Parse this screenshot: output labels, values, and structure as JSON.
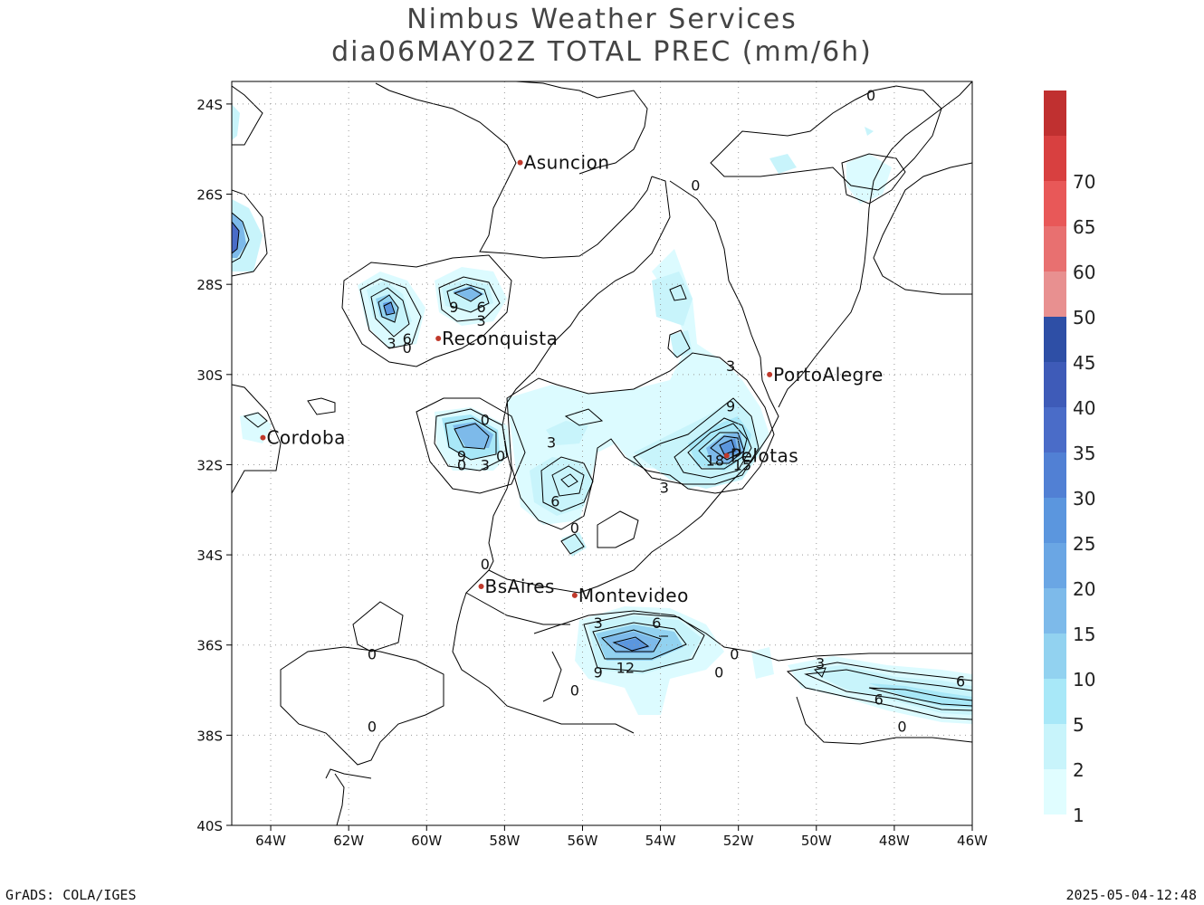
{
  "header": {
    "title": "Nimbus Weather Services",
    "subtitle": "dia06MAY02Z TOTAL PREC (mm/6h)"
  },
  "map": {
    "lon_range": [
      -65,
      -46
    ],
    "lat_range": [
      -40,
      -23.5
    ],
    "lat_ticks": [
      "24S",
      "26S",
      "28S",
      "30S",
      "32S",
      "34S",
      "36S",
      "38S",
      "40S"
    ],
    "lon_ticks": [
      "64W",
      "62W",
      "60W",
      "58W",
      "56W",
      "54W",
      "52W",
      "50W",
      "48W",
      "46W"
    ],
    "cities": [
      {
        "name": "Asuncion",
        "lon": -57.6,
        "lat": -25.3
      },
      {
        "name": "Reconquista",
        "lon": -59.7,
        "lat": -29.2
      },
      {
        "name": "PortoAlegre",
        "lon": -51.2,
        "lat": -30.0
      },
      {
        "name": "Cordoba",
        "lon": -64.2,
        "lat": -31.4
      },
      {
        "name": "Pelotas",
        "lon": -52.3,
        "lat": -31.8
      },
      {
        "name": "BsAires",
        "lon": -58.6,
        "lat": -34.7
      },
      {
        "name": "Montevideo",
        "lon": -56.2,
        "lat": -34.9
      }
    ],
    "city_color": "#c0392b",
    "contour_labels": [
      {
        "t": "0",
        "lon": -48.6,
        "lat": -23.8
      },
      {
        "t": "0",
        "lon": -53.1,
        "lat": -25.8
      },
      {
        "t": "9",
        "lon": -59.3,
        "lat": -28.5
      },
      {
        "t": "6",
        "lon": -58.6,
        "lat": -28.5
      },
      {
        "t": "3",
        "lon": -58.6,
        "lat": -28.8
      },
      {
        "t": "3",
        "lon": -60.9,
        "lat": -29.3
      },
      {
        "t": "6",
        "lon": -60.5,
        "lat": -29.2
      },
      {
        "t": "0",
        "lon": -60.5,
        "lat": -29.4
      },
      {
        "t": "3",
        "lon": -52.2,
        "lat": -29.8
      },
      {
        "t": "9",
        "lon": -52.2,
        "lat": -30.7
      },
      {
        "t": "0",
        "lon": -58.5,
        "lat": -31.0
      },
      {
        "t": "3",
        "lon": -56.8,
        "lat": -31.5
      },
      {
        "t": "9",
        "lon": -59.1,
        "lat": -31.8
      },
      {
        "t": "0",
        "lon": -59.1,
        "lat": -32.0
      },
      {
        "t": "3",
        "lon": -58.5,
        "lat": -32.0
      },
      {
        "t": "0",
        "lon": -58.1,
        "lat": -31.8
      },
      {
        "t": "18",
        "lon": -52.6,
        "lat": -31.9
      },
      {
        "t": "15",
        "lon": -51.9,
        "lat": -32.0
      },
      {
        "t": "3",
        "lon": -53.9,
        "lat": -32.5
      },
      {
        "t": "6",
        "lon": -56.7,
        "lat": -32.8
      },
      {
        "t": "0",
        "lon": -56.2,
        "lat": -33.4
      },
      {
        "t": "0",
        "lon": -58.5,
        "lat": -34.2
      },
      {
        "t": "3",
        "lon": -55.6,
        "lat": -35.5
      },
      {
        "t": "6",
        "lon": -54.1,
        "lat": -35.5
      },
      {
        "t": "0",
        "lon": -52.1,
        "lat": -36.2
      },
      {
        "t": "9",
        "lon": -55.6,
        "lat": -36.6
      },
      {
        "t": "12",
        "lon": -54.9,
        "lat": -36.5
      },
      {
        "t": "0",
        "lon": -52.5,
        "lat": -36.6
      },
      {
        "t": "3",
        "lon": -49.9,
        "lat": -36.4
      },
      {
        "t": "6",
        "lon": -46.3,
        "lat": -36.8
      },
      {
        "t": "6",
        "lon": -48.4,
        "lat": -37.2
      },
      {
        "t": "0",
        "lon": -61.4,
        "lat": -36.2
      },
      {
        "t": "0",
        "lon": -56.2,
        "lat": -37.0
      },
      {
        "t": "0",
        "lon": -61.4,
        "lat": -37.8
      },
      {
        "t": "0",
        "lon": -47.8,
        "lat": -37.8
      }
    ]
  },
  "legend": {
    "colors": [
      "#e0fdff",
      "#c8f4fb",
      "#a8e8f8",
      "#92d2f0",
      "#7dbaea",
      "#6aa6e4",
      "#5b96de",
      "#5180d4",
      "#4a6cc8",
      "#3e5bb8",
      "#2e4fa6",
      "#e89090",
      "#e87070",
      "#e85858",
      "#d84040",
      "#c03030"
    ],
    "labels": [
      "1",
      "2",
      "5",
      "10",
      "15",
      "20",
      "25",
      "30",
      "35",
      "40",
      "45",
      "50",
      "60",
      "65",
      "70"
    ]
  },
  "footer": {
    "left": "GrADS: COLA/IGES",
    "right": "2025-05-04-12:48"
  }
}
